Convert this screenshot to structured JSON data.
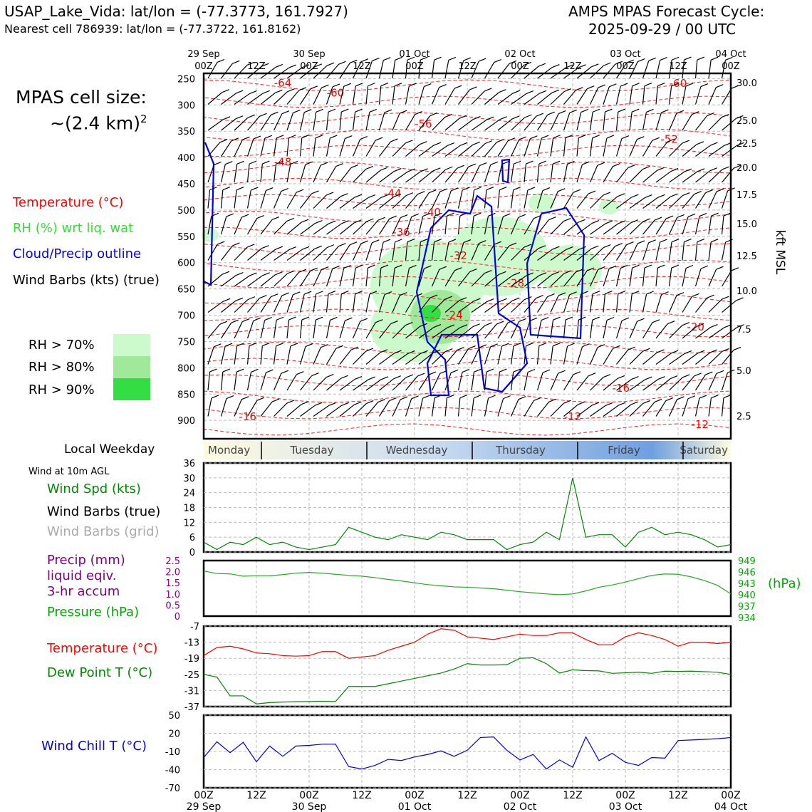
{
  "header": {
    "site_line": "USAP_Lake_Vida: lat/lon = (-77.3773, 161.7927)",
    "cell_line": "Nearest cell 786939: lat/lon = (-77.3722, 161.8162)",
    "forecast_title": "AMPS MPAS Forecast Cycle:",
    "forecast_cycle": "2025-09-29 / 00 UTC"
  },
  "cell_size": {
    "label": "MPAS cell size:",
    "value": "~(2.4 km)",
    "exponent": "2"
  },
  "legend": {
    "temperature": "Temperature (°C)",
    "rh": "RH (%) wrt liq. wat",
    "cloud": "Cloud/Precip outline",
    "wind": "Wind Barbs (kts) (true)",
    "rh70": "RH > 70%",
    "rh80": "RH > 80%",
    "rh90": "RH > 90%",
    "colors": {
      "temperature": "#ff0000",
      "rh": "#33dd33",
      "cloud": "#0000ff",
      "wind": "#000000",
      "rh70": "#ccfacc",
      "rh80": "#a0e99a",
      "rh90": "#33dd44"
    }
  },
  "time_axis": {
    "top_dates": [
      "29 Sep",
      "30 Sep",
      "01 Oct",
      "02 Oct",
      "03 Oct",
      "04 Oct"
    ],
    "hour_labels": [
      "00Z",
      "12Z",
      "00Z",
      "12Z",
      "00Z",
      "12Z",
      "00Z",
      "12Z",
      "00Z",
      "12Z",
      "00Z"
    ],
    "bottom_dates": [
      "29 Sep",
      "30 Sep",
      "01 Oct",
      "02 Oct",
      "03 Oct",
      "04 Oct"
    ],
    "range_hours": [
      0,
      120
    ]
  },
  "weekday": {
    "label": "Local Weekday",
    "days": [
      "Monday",
      "Tuesday",
      "Wednesday",
      "Thursday",
      "Friday",
      "Saturday"
    ]
  },
  "panels": {
    "wind10m_title": "Wind at 10m AGL",
    "wind_spd_label": "Wind Spd (kts)",
    "wind_barbs_true": "Wind Barbs (true)",
    "wind_barbs_grid": "Wind Barbs (grid)",
    "precip_label_1": "Precip (mm)",
    "precip_label_2": "liquid eqiv.",
    "precip_label_3": "3-hr accum",
    "pressure_label": "Pressure (hPa)",
    "hpa_unit": "(hPa)",
    "temp_label": "Temperature (°C)",
    "dew_label": "Dew Point T (°C)",
    "windchill_label": "Wind Chill T (°C)",
    "right_axis_label": "kft MSL"
  },
  "chart_data": [
    {
      "type": "line",
      "title": "Vertical profile (pressure levels)",
      "ylabel": "",
      "y_ticks_hpa": [
        250,
        300,
        350,
        400,
        450,
        500,
        550,
        600,
        650,
        700,
        750,
        800,
        850,
        900
      ],
      "right_ticks_kft": [
        "30.0",
        "25.0",
        "22.5",
        "20.0",
        "17.5",
        "15.0",
        "12.5",
        "10.0",
        "7.5",
        "5.0",
        "2.5"
      ],
      "ylim_hpa": [
        240,
        935
      ],
      "temperature_contour_labels": [
        {
          "t": 18,
          "p": 258,
          "label": "-64"
        },
        {
          "t": 30,
          "p": 277,
          "label": "-60"
        },
        {
          "t": 50,
          "p": 336,
          "label": "-56"
        },
        {
          "t": 18,
          "p": 409,
          "label": "-48"
        },
        {
          "t": 43,
          "p": 468,
          "label": "-44"
        },
        {
          "t": 52,
          "p": 504,
          "label": "-40"
        },
        {
          "t": 45,
          "p": 542,
          "label": "-36"
        },
        {
          "t": 58,
          "p": 587,
          "label": "-32"
        },
        {
          "t": 71,
          "p": 639,
          "label": "-28"
        },
        {
          "t": 57,
          "p": 700,
          "label": "-24"
        },
        {
          "t": 112,
          "p": 722,
          "label": "-20"
        },
        {
          "t": 95,
          "p": 839,
          "label": "-16"
        },
        {
          "t": 10,
          "p": 893,
          "label": "-16"
        },
        {
          "t": 84,
          "p": 893,
          "label": "-12"
        },
        {
          "t": 113,
          "p": 908,
          "label": "-12"
        },
        {
          "t": 108,
          "p": 259,
          "label": "-60"
        },
        {
          "t": 106,
          "p": 365,
          "label": "-52"
        }
      ]
    },
    {
      "type": "line",
      "title": "Wind Spd (kts)",
      "ylim": [
        0,
        36
      ],
      "y_ticks": [
        0,
        6,
        12,
        18,
        24,
        30,
        36
      ],
      "x_hours": [
        0,
        3,
        6,
        9,
        12,
        15,
        18,
        21,
        24,
        27,
        30,
        33,
        36,
        39,
        42,
        45,
        48,
        51,
        54,
        57,
        60,
        63,
        66,
        69,
        72,
        75,
        78,
        81,
        84,
        87,
        90,
        93,
        96,
        99,
        102,
        105,
        108,
        111,
        114,
        117,
        120
      ],
      "series": [
        {
          "name": "Wind Spd (kts)",
          "values": [
            4,
            1,
            4,
            3,
            6,
            3,
            4,
            2,
            1,
            2,
            3,
            10,
            8,
            6,
            5,
            7,
            6,
            5,
            8,
            7,
            5,
            5,
            5,
            1,
            3,
            4,
            8,
            5,
            30,
            6,
            7,
            7,
            2,
            8,
            10,
            7,
            8,
            7,
            5,
            2,
            3
          ]
        }
      ]
    },
    {
      "type": "line",
      "title": "Pressure (hPa)",
      "ylim_precip": [
        0,
        2.5
      ],
      "y_ticks_precip": [
        "0",
        "0.5",
        "1.0",
        "1.5",
        "2.0",
        "2.5"
      ],
      "ylim_pressure": [
        934,
        949
      ],
      "y_ticks_pressure": [
        "934",
        "937",
        "940",
        "943",
        "946",
        "949"
      ],
      "x_hours": [
        0,
        3,
        6,
        9,
        12,
        15,
        18,
        21,
        24,
        27,
        30,
        33,
        36,
        39,
        42,
        45,
        48,
        51,
        54,
        57,
        60,
        63,
        66,
        69,
        72,
        75,
        78,
        81,
        84,
        87,
        90,
        93,
        96,
        99,
        102,
        105,
        108,
        111,
        114,
        117,
        120
      ],
      "series": [
        {
          "name": "Pressure (hPa)",
          "values": [
            946.2,
            945.5,
            945.4,
            944.8,
            944.9,
            944.9,
            945.2,
            945.6,
            945.8,
            945.6,
            945.3,
            945.0,
            944.8,
            944.4,
            943.9,
            943.5,
            943.0,
            942.5,
            942.2,
            941.9,
            941.8,
            941.6,
            941.4,
            941.0,
            940.6,
            940.3,
            940.0,
            939.8,
            940.0,
            940.8,
            941.8,
            942.4,
            943.2,
            944.1,
            945.0,
            945.4,
            945.3,
            944.6,
            943.6,
            942.3,
            940.0
          ]
        }
      ]
    },
    {
      "type": "line",
      "title": "Temperature and Dew Point (°C)",
      "ylim": [
        -37,
        -7
      ],
      "y_ticks": [
        -37,
        -31,
        -25,
        -19,
        -13,
        -7
      ],
      "x_hours": [
        0,
        3,
        6,
        9,
        12,
        15,
        18,
        21,
        24,
        27,
        30,
        33,
        36,
        39,
        42,
        45,
        48,
        51,
        54,
        57,
        60,
        63,
        66,
        69,
        72,
        75,
        78,
        81,
        84,
        87,
        90,
        93,
        96,
        99,
        102,
        105,
        108,
        111,
        114,
        117,
        120
      ],
      "series": [
        {
          "name": "Temperature (°C)",
          "values": [
            -18,
            -15,
            -14.5,
            -15.5,
            -17,
            -17.3,
            -18,
            -18.2,
            -18,
            -16.5,
            -16.5,
            -19,
            -18.5,
            -18,
            -16,
            -14.5,
            -13,
            -10,
            -8,
            -8.5,
            -11,
            -11.5,
            -12,
            -11,
            -10,
            -10.5,
            -10.5,
            -9.5,
            -9.5,
            -12,
            -14,
            -14,
            -11,
            -9.5,
            -10.5,
            -12,
            -14.5,
            -13,
            -13,
            -13.5,
            -13
          ]
        },
        {
          "name": "Dew Point T (°C)",
          "values": [
            -25,
            -26,
            -33,
            -33,
            -36,
            -35.5,
            -35.3,
            -35.2,
            -35.1,
            -35,
            -35.1,
            -29.5,
            -29.5,
            -29.5,
            -28.5,
            -27.5,
            -26.5,
            -25.5,
            -24.5,
            -23,
            -21,
            -21.5,
            -21.5,
            -21.4,
            -19,
            -18.8,
            -21,
            -24.5,
            -23.3,
            -23.6,
            -23.7,
            -24.6,
            -24.4,
            -24.2,
            -24.6,
            -23.8,
            -23.9,
            -23.8,
            -24,
            -24.2,
            -25
          ]
        }
      ]
    },
    {
      "type": "line",
      "title": "Wind Chill T (°C)",
      "ylim": [
        -70,
        50
      ],
      "y_ticks": [
        -70,
        -40,
        -10,
        20,
        50
      ],
      "x_hours": [
        0,
        3,
        6,
        9,
        12,
        15,
        18,
        21,
        24,
        27,
        30,
        33,
        36,
        39,
        42,
        45,
        48,
        51,
        54,
        57,
        60,
        63,
        66,
        69,
        72,
        75,
        78,
        81,
        84,
        87,
        90,
        93,
        96,
        99,
        102,
        105,
        108,
        111,
        114,
        117,
        120
      ],
      "series": [
        {
          "name": "Wind Chill T (°C)",
          "values": [
            -20,
            6,
            -12,
            5,
            -27,
            -1,
            -18,
            -1,
            0,
            2,
            2,
            -35,
            -39,
            -33,
            -23,
            -25,
            -19,
            -15,
            -9,
            -18,
            -8,
            13,
            14,
            -8,
            -24,
            -15,
            -39,
            -24,
            -36,
            14,
            -25,
            -13,
            -28,
            -33,
            -20,
            -21,
            8,
            9,
            10,
            11,
            13
          ]
        }
      ]
    }
  ]
}
